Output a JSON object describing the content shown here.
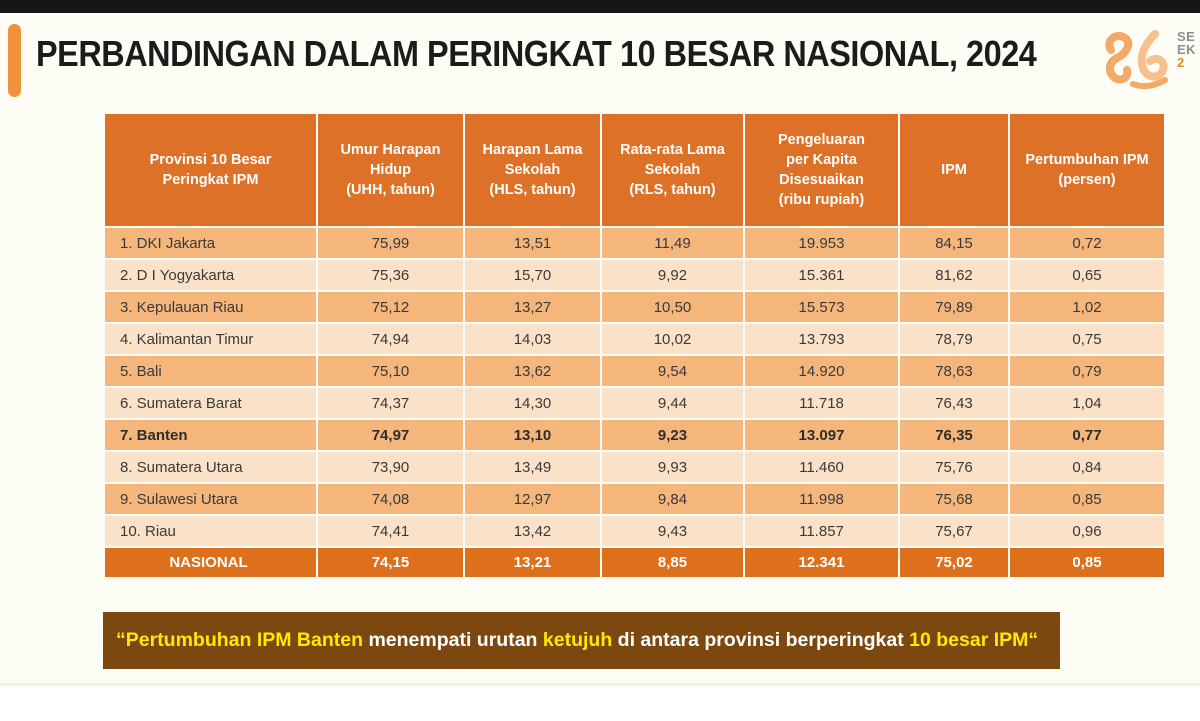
{
  "title": "PERBANDINGAN DALAM PERINGKAT 10 BESAR NASIONAL, 2024",
  "logo": {
    "line1": "SE",
    "line2": "EK",
    "line3": "2"
  },
  "table": {
    "columns": [
      "Provinsi 10 Besar\nPeringkat IPM",
      "Umur Harapan\nHidup\n(UHH, tahun)",
      "Harapan Lama\nSekolah\n(HLS, tahun)",
      "Rata-rata Lama\nSekolah\n(RLS, tahun)",
      "Pengeluaran\nper Kapita\nDisesuaikan\n(ribu rupiah)",
      "IPM",
      "Pertumbuhan IPM\n(persen)"
    ],
    "rows": [
      {
        "name": "1. DKI Jakarta",
        "values": [
          "75,99",
          "13,51",
          "11,49",
          "19.953",
          "84,15",
          "0,72"
        ],
        "emphasis": false
      },
      {
        "name": "2. D I Yogyakarta",
        "values": [
          "75,36",
          "15,70",
          "9,92",
          "15.361",
          "81,62",
          "0,65"
        ],
        "emphasis": false
      },
      {
        "name": "3. Kepulauan Riau",
        "values": [
          "75,12",
          "13,27",
          "10,50",
          "15.573",
          "79,89",
          "1,02"
        ],
        "emphasis": false
      },
      {
        "name": "4. Kalimantan Timur",
        "values": [
          "74,94",
          "14,03",
          "10,02",
          "13.793",
          "78,79",
          "0,75"
        ],
        "emphasis": false
      },
      {
        "name": "5. Bali",
        "values": [
          "75,10",
          "13,62",
          "9,54",
          "14.920",
          "78,63",
          "0,79"
        ],
        "emphasis": false
      },
      {
        "name": "6. Sumatera Barat",
        "values": [
          "74,37",
          "14,30",
          "9,44",
          "11.718",
          "76,43",
          "1,04"
        ],
        "emphasis": false
      },
      {
        "name": "7. Banten",
        "values": [
          "74,97",
          "13,10",
          "9,23",
          "13.097",
          "76,35",
          "0,77"
        ],
        "emphasis": true
      },
      {
        "name": "8. Sumatera Utara",
        "values": [
          "73,90",
          "13,49",
          "9,93",
          "11.460",
          "75,76",
          "0,84"
        ],
        "emphasis": false
      },
      {
        "name": "9. Sulawesi Utara",
        "values": [
          "74,08",
          "12,97",
          "9,84",
          "11.998",
          "75,68",
          "0,85"
        ],
        "emphasis": false
      },
      {
        "name": "10. Riau",
        "values": [
          "74,41",
          "13,42",
          "9,43",
          "11.857",
          "75,67",
          "0,96"
        ],
        "emphasis": false
      }
    ],
    "nasional": {
      "name": "NASIONAL",
      "values": [
        "74,15",
        "13,21",
        "8,85",
        "12.341",
        "75,02",
        "0,85"
      ]
    }
  },
  "quote": {
    "segments": [
      {
        "text": "“Pertumbuhan IPM Banten ",
        "color": "yellow"
      },
      {
        "text": "menempati urutan ",
        "color": "white"
      },
      {
        "text": "ketujuh ",
        "color": "yellow"
      },
      {
        "text": "di antara provinsi berperingkat ",
        "color": "white"
      },
      {
        "text": "10 besar IPM“",
        "color": "yellow"
      }
    ]
  },
  "colors": {
    "accent": "#F0913C",
    "header_orange": "#DD7128",
    "row_dark": "#F4B67B",
    "row_light": "#FAE2C8",
    "nasional_orange": "#DE701C",
    "quote_bg": "#7D480F",
    "quote_yellow": "#FFE900",
    "top_bar": "#151515",
    "slide_bg": "#FDFCF5"
  }
}
